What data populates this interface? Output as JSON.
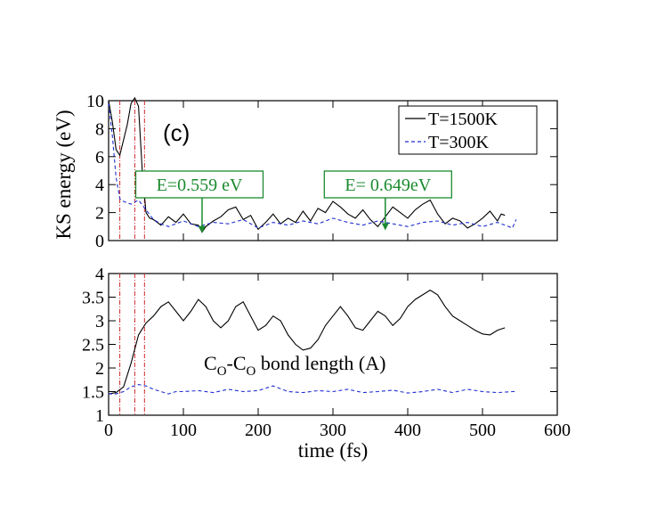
{
  "chart_data": [
    {
      "type": "line",
      "panel_label": "(c)",
      "ylabel": "KS energy (eV)",
      "xlim": [
        0,
        600
      ],
      "ylim": [
        0,
        10
      ],
      "y_ticks": [
        "0",
        "2",
        "4",
        "6",
        "8",
        "10"
      ],
      "legend": {
        "position": "top-right",
        "entries": [
          "T=1500K",
          "T=300K"
        ]
      },
      "series": [
        {
          "name": "T=1500K",
          "color": "#000000",
          "x": [
            0,
            5,
            10,
            15,
            20,
            25,
            30,
            35,
            40,
            45,
            50,
            55,
            60,
            70,
            80,
            90,
            100,
            110,
            120,
            125,
            130,
            140,
            150,
            160,
            170,
            180,
            190,
            200,
            210,
            220,
            230,
            240,
            250,
            260,
            270,
            280,
            290,
            300,
            310,
            320,
            330,
            340,
            350,
            360,
            370,
            380,
            390,
            400,
            410,
            420,
            430,
            440,
            450,
            460,
            470,
            480,
            490,
            500,
            510,
            520,
            525,
            530
          ],
          "y": [
            10,
            8.5,
            6.5,
            6.1,
            7.2,
            8.3,
            9.8,
            10.2,
            9.6,
            5,
            2,
            1.6,
            1.5,
            1.1,
            1.7,
            1.3,
            1.9,
            1.2,
            1.1,
            0.6,
            1.0,
            1.4,
            1.7,
            2.2,
            2.4,
            1.5,
            1.8,
            0.8,
            1.3,
            1.9,
            1.2,
            1.6,
            1.3,
            2.1,
            1.4,
            2.3,
            2.0,
            2.8,
            2.4,
            1.9,
            1.6,
            2.2,
            1.5,
            1.0,
            1.7,
            2.4,
            2.0,
            1.6,
            2.2,
            2.6,
            2.9,
            1.9,
            1.2,
            1.6,
            1.4,
            0.9,
            1.2,
            1.6,
            2.1,
            1.4,
            1.9,
            1.8
          ]
        },
        {
          "name": "T=300K",
          "color": "#1f2fd0",
          "x": [
            0,
            5,
            10,
            15,
            20,
            30,
            40,
            50,
            60,
            70,
            80,
            100,
            120,
            140,
            160,
            180,
            200,
            220,
            240,
            260,
            280,
            300,
            320,
            340,
            360,
            380,
            400,
            420,
            440,
            460,
            480,
            500,
            520,
            540,
            545
          ],
          "y": [
            9.8,
            7.5,
            4.5,
            3.0,
            2.8,
            2.6,
            2.9,
            2.2,
            1.5,
            1.2,
            1.0,
            1.4,
            1.0,
            1.3,
            1.2,
            1.5,
            0.9,
            1.3,
            1.1,
            1.4,
            1.2,
            1.6,
            1.3,
            1.1,
            1.4,
            1.2,
            1.0,
            1.3,
            1.4,
            1.1,
            1.3,
            1.0,
            1.3,
            0.9,
            1.5
          ]
        }
      ],
      "markers_vertical": [
        15,
        35,
        48
      ],
      "annotations": [
        {
          "text": "E=0.559 eV",
          "x": 125,
          "y": 0.6
        },
        {
          "text": "E= 0.649eV",
          "x": 370,
          "y": 0.8
        }
      ]
    },
    {
      "type": "line",
      "xlabel": "time (fs)",
      "xlim": [
        0,
        600
      ],
      "x_ticks": [
        "0",
        "100",
        "200",
        "300",
        "400",
        "500",
        "600"
      ],
      "ylim": [
        1,
        4
      ],
      "y_ticks": [
        "1",
        "1.5",
        "2",
        "2.5",
        "3",
        "3.5",
        "4"
      ],
      "annotation": {
        "text_main": "C",
        "sub": "O",
        "dash": "-",
        "text_main2": "C",
        "sub2": "O",
        "tail": " bond length (A)"
      },
      "series": [
        {
          "name": "T=1500K",
          "color": "#000000",
          "x": [
            0,
            10,
            20,
            30,
            40,
            50,
            60,
            70,
            80,
            90,
            100,
            110,
            120,
            130,
            140,
            150,
            160,
            170,
            180,
            190,
            200,
            210,
            220,
            230,
            240,
            250,
            260,
            270,
            280,
            290,
            300,
            310,
            320,
            330,
            340,
            350,
            360,
            370,
            380,
            390,
            400,
            410,
            420,
            430,
            440,
            450,
            460,
            470,
            480,
            490,
            500,
            510,
            520,
            530
          ],
          "y": [
            1.45,
            1.48,
            1.6,
            2.1,
            2.7,
            2.95,
            3.1,
            3.3,
            3.4,
            3.2,
            3.0,
            3.2,
            3.45,
            3.3,
            3.0,
            2.85,
            3.0,
            3.3,
            3.4,
            3.1,
            2.8,
            2.9,
            3.1,
            3.0,
            2.7,
            2.5,
            2.38,
            2.42,
            2.6,
            2.9,
            3.1,
            3.3,
            3.1,
            2.85,
            2.8,
            3.0,
            3.2,
            3.1,
            2.9,
            3.05,
            3.3,
            3.45,
            3.55,
            3.65,
            3.55,
            3.3,
            3.1,
            3.0,
            2.9,
            2.8,
            2.72,
            2.7,
            2.8,
            2.85
          ]
        },
        {
          "name": "T=300K",
          "color": "#1f2fd0",
          "x": [
            0,
            10,
            20,
            30,
            40,
            50,
            60,
            70,
            80,
            90,
            100,
            120,
            140,
            160,
            180,
            200,
            220,
            240,
            260,
            280,
            300,
            320,
            340,
            360,
            380,
            400,
            420,
            440,
            460,
            480,
            500,
            520,
            540,
            545
          ],
          "y": [
            1.45,
            1.45,
            1.5,
            1.6,
            1.65,
            1.62,
            1.55,
            1.5,
            1.45,
            1.5,
            1.5,
            1.52,
            1.48,
            1.55,
            1.5,
            1.52,
            1.62,
            1.5,
            1.48,
            1.52,
            1.5,
            1.55,
            1.48,
            1.5,
            1.53,
            1.47,
            1.5,
            1.55,
            1.48,
            1.55,
            1.5,
            1.48,
            1.5,
            1.5
          ]
        }
      ],
      "markers_vertical": [
        15,
        35,
        48
      ]
    }
  ]
}
